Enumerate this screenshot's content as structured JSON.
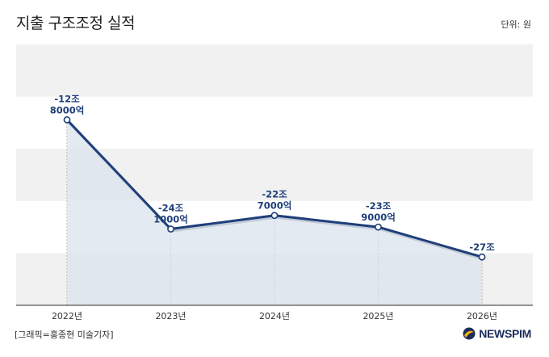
{
  "header": {
    "title": "지출 구조조정 실적",
    "unit": "단위: 원"
  },
  "footer": {
    "credit": "[그래픽=홍종현 미술기자]",
    "logo_text": "NEWSPIM"
  },
  "colors": {
    "line": "#1f3f7a",
    "area": "#dbe3ee",
    "band": "#f1f1f1",
    "axis": "#555555"
  },
  "chart_data": {
    "type": "area",
    "categories": [
      "2022년",
      "2023년",
      "2024년",
      "2025년",
      "2026년"
    ],
    "values": [
      -12.8,
      -24.1,
      -22.7,
      -23.9,
      -27
    ],
    "value_labels": [
      [
        "-12조",
        "8000억"
      ],
      [
        "-24조",
        "1000억"
      ],
      [
        "-22조",
        "7000억"
      ],
      [
        "-23조",
        "9000억"
      ],
      [
        "-27조"
      ]
    ],
    "ylim": [
      -32,
      -5
    ],
    "grid": "alternating horizontal bands",
    "unit": "단위: 원"
  }
}
